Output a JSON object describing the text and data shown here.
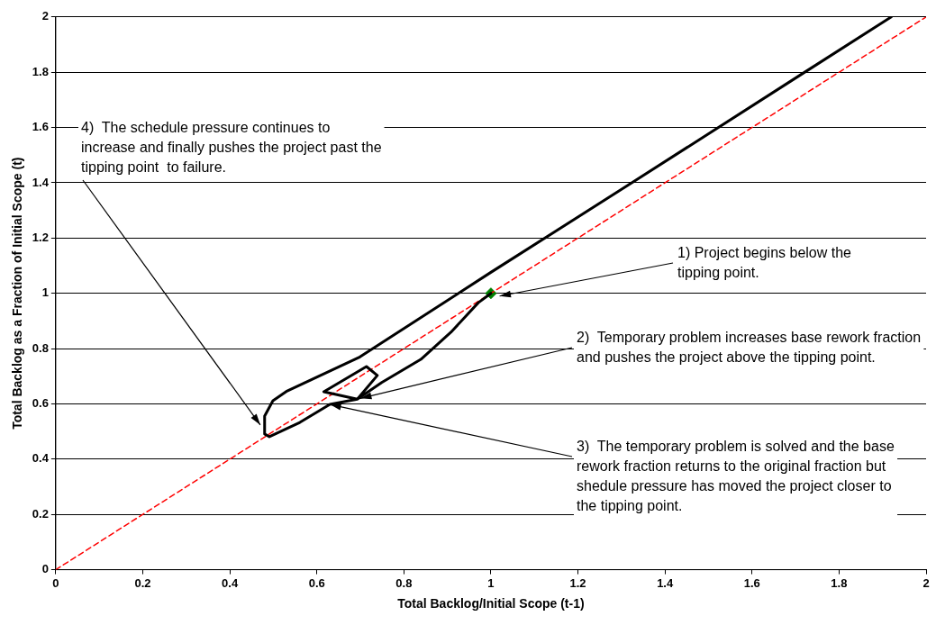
{
  "chart_data": {
    "type": "line",
    "xlabel": "Total Backlog/Initial Scope (t-1)",
    "ylabel": "Total Backlog as a Fraction of Initial Scope (t)",
    "xlim": [
      0,
      2
    ],
    "xticks": [
      0,
      0.2,
      0.4,
      0.6,
      0.8,
      1,
      1.2,
      1.4,
      1.6,
      1.8,
      2
    ],
    "ylim": [
      0,
      2
    ],
    "yticks": [
      0,
      0.2,
      0.4,
      0.6,
      0.8,
      1,
      1.2,
      1.4,
      1.6,
      1.8,
      2
    ],
    "grid": "y",
    "legend": false,
    "series": [
      {
        "type": "line",
        "color": "#000000",
        "line_style": "solid",
        "x": [
          1.0,
          0.971,
          0.908,
          0.839,
          0.749,
          0.693,
          0.739,
          0.714,
          0.616,
          0.693,
          0.63,
          0.561,
          0.491,
          0.48,
          0.48,
          0.499,
          0.532,
          0.699,
          1.0,
          1.326,
          1.722,
          1.92
        ],
        "values": [
          1.0,
          0.966,
          0.859,
          0.761,
          0.677,
          0.617,
          0.703,
          0.735,
          0.644,
          0.617,
          0.598,
          0.533,
          0.481,
          0.491,
          0.556,
          0.611,
          0.647,
          0.77,
          1.076,
          1.402,
          1.801,
          2.0
        ]
      },
      {
        "type": "line",
        "color": "#ff0000",
        "line_style": "dashed",
        "x": [
          0,
          2
        ],
        "values": [
          0,
          2
        ]
      },
      {
        "type": "scatter",
        "color": "#008000",
        "marker": "diamond",
        "x": [
          1
        ],
        "values": [
          1
        ]
      }
    ],
    "annotations": [
      {
        "text": "1) Project begins below the tipping point.",
        "x": 1.02,
        "y": 0.99
      },
      {
        "text": "2)  Temporary problem increases base rework fraction and pushes the project above the tipping point.",
        "x": 0.7,
        "y": 0.62
      },
      {
        "text": "3)  The temporary problem is solved and the base rework fraction returns to the original fraction but shedule pressure has moved the project closer to the tipping point.",
        "x": 0.63,
        "y": 0.598
      },
      {
        "text": "4)  The schedule pressure continues to increase and finally pushes the project past the tipping point  to failure.",
        "x": 0.47,
        "y": 0.524
      }
    ]
  }
}
